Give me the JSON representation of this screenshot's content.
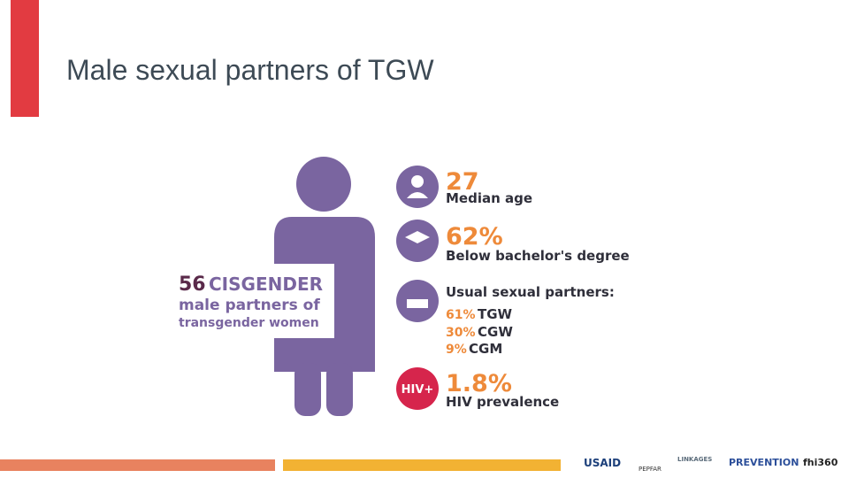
{
  "title": "Male sexual partners of TGW",
  "figure": {
    "count": "56",
    "label_line1": "CISGENDER",
    "label_line2": "male partners of",
    "label_line3": "transgender women"
  },
  "stats": [
    {
      "value": "27",
      "label": "Median age"
    },
    {
      "value": "62%",
      "label": "Below bachelor's degree"
    },
    {
      "label": "Usual sexual partners:",
      "items": [
        {
          "value": "61%",
          "label": "TGW"
        },
        {
          "value": "30%",
          "label": "CGW"
        },
        {
          "value": "9%",
          "label": "CGM"
        }
      ]
    },
    {
      "icon": "HIV+",
      "value": "1.8%",
      "label": "HIV prevalence"
    }
  ],
  "logos": [
    "USAID",
    "PEPFAR",
    "LINKAGES",
    "PREVENTION",
    "fhi360"
  ]
}
